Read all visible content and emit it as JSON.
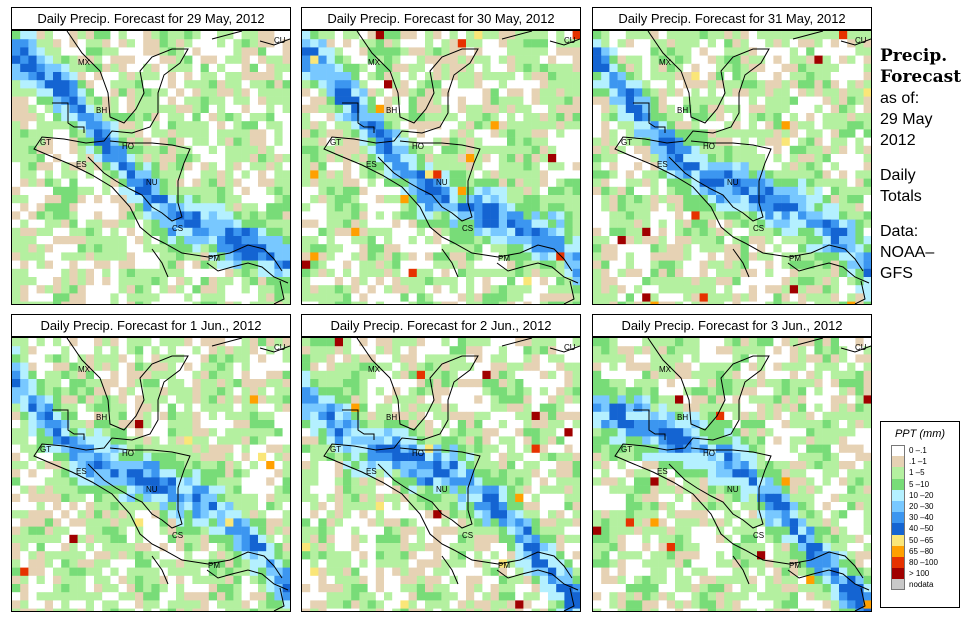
{
  "panels": [
    {
      "title": "Daily Precip. Forecast for  29 May, 2012"
    },
    {
      "title": "Daily Precip. Forecast for  30 May, 2012"
    },
    {
      "title": "Daily Precip. Forecast for  31 May, 2012"
    },
    {
      "title": "Daily Precip. Forecast for  1 Jun., 2012"
    },
    {
      "title": "Daily Precip. Forecast for  2 Jun., 2012"
    },
    {
      "title": "Daily Precip. Forecast for  3 Jun., 2012"
    }
  ],
  "map_labels": [
    "MX",
    "BH",
    "GT",
    "HO",
    "ES",
    "NU",
    "CS",
    "PM",
    "CU"
  ],
  "sidebar": {
    "heading1": "Precip.",
    "heading2": "Forecast",
    "asof": "as of:",
    "date1": "29 May",
    "date2": "2012",
    "daily": "Daily",
    "totals": "Totals",
    "data": "Data:",
    "src1": "NOAA–",
    "src2": "GFS"
  },
  "legend": {
    "title": "PPT (mm)",
    "classes": [
      {
        "label": "0 –.1",
        "color": "#ffffff"
      },
      {
        "label": ".1 –1",
        "color": "#e6d2b4"
      },
      {
        "label": "1 –5",
        "color": "#b4f0a0"
      },
      {
        "label": "5 –10",
        "color": "#78dc78"
      },
      {
        "label": "10 –20",
        "color": "#b4f0ff"
      },
      {
        "label": "20 –30",
        "color": "#78c8ff"
      },
      {
        "label": "30 –40",
        "color": "#3c96f0"
      },
      {
        "label": "40 –50",
        "color": "#1464d2"
      },
      {
        "label": "50 –65",
        "color": "#fae678"
      },
      {
        "label": "65 –80",
        "color": "#ffa000"
      },
      {
        "label": "80 –100",
        "color": "#e63200"
      },
      {
        "label": "> 100",
        "color": "#a00000"
      },
      {
        "label": "nodata",
        "color": "#c8c8c8"
      }
    ]
  }
}
